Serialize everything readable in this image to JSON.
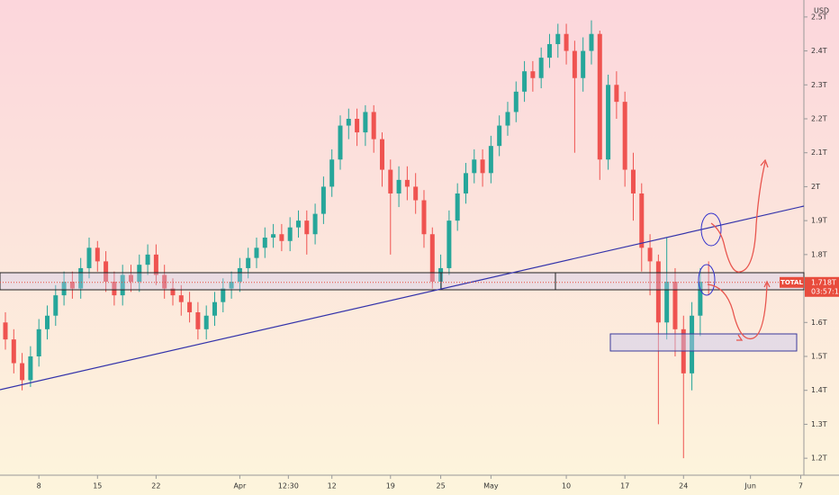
{
  "chart_data": {
    "type": "candlestick",
    "currency": "USD",
    "symbol": "TOTAL",
    "last_price": {
      "value": 1.718,
      "label": "1.718T"
    },
    "countdown": "03:57:15",
    "up_color": "#26a69a",
    "down_color": "#ef5350",
    "candles": {
      "open": [
        1.6,
        1.55,
        1.48,
        1.43,
        1.5,
        1.58,
        1.62,
        1.68,
        1.72,
        1.7,
        1.76,
        1.82,
        1.78,
        1.72,
        1.68,
        1.74,
        1.72,
        1.77,
        1.8,
        1.74,
        1.7,
        1.68,
        1.66,
        1.63,
        1.58,
        1.62,
        1.66,
        1.7,
        1.72,
        1.76,
        1.79,
        1.82,
        1.85,
        1.86,
        1.84,
        1.88,
        1.9,
        1.86,
        1.92,
        2.0,
        2.08,
        2.18,
        2.2,
        2.16,
        2.22,
        2.14,
        2.05,
        1.98,
        2.02,
        2.0,
        1.96,
        1.86,
        1.72,
        1.76,
        1.9,
        1.98,
        2.04,
        2.08,
        2.04,
        2.12,
        2.18,
        2.22,
        2.28,
        2.34,
        2.32,
        2.38,
        2.42,
        2.45,
        2.4,
        2.32,
        2.4,
        2.45,
        2.08,
        2.3,
        2.25,
        2.05,
        1.98,
        1.82,
        1.78,
        1.6,
        1.72,
        1.58,
        1.45,
        1.62,
        1.72
      ],
      "high": [
        1.63,
        1.58,
        1.51,
        1.53,
        1.61,
        1.65,
        1.71,
        1.75,
        1.75,
        1.79,
        1.85,
        1.84,
        1.81,
        1.75,
        1.77,
        1.77,
        1.8,
        1.83,
        1.83,
        1.77,
        1.73,
        1.71,
        1.69,
        1.66,
        1.65,
        1.69,
        1.73,
        1.75,
        1.79,
        1.82,
        1.85,
        1.88,
        1.89,
        1.89,
        1.91,
        1.93,
        1.93,
        1.95,
        2.03,
        2.11,
        2.21,
        2.23,
        2.23,
        2.24,
        2.24,
        2.16,
        2.08,
        2.06,
        2.06,
        2.04,
        1.99,
        1.88,
        1.8,
        1.93,
        2.01,
        2.07,
        2.11,
        2.11,
        2.15,
        2.21,
        2.25,
        2.31,
        2.37,
        2.37,
        2.41,
        2.45,
        2.48,
        2.48,
        2.43,
        2.44,
        2.49,
        2.46,
        2.33,
        2.34,
        2.28,
        2.1,
        2.01,
        1.86,
        1.8,
        1.85,
        1.76,
        1.62,
        1.66,
        1.76,
        1.78
      ],
      "low": [
        1.52,
        1.45,
        1.4,
        1.41,
        1.47,
        1.55,
        1.59,
        1.65,
        1.67,
        1.67,
        1.73,
        1.75,
        1.69,
        1.65,
        1.65,
        1.69,
        1.69,
        1.74,
        1.71,
        1.67,
        1.65,
        1.62,
        1.6,
        1.55,
        1.55,
        1.59,
        1.63,
        1.67,
        1.69,
        1.73,
        1.76,
        1.79,
        1.82,
        1.81,
        1.81,
        1.85,
        1.8,
        1.83,
        1.89,
        1.97,
        2.05,
        2.14,
        2.12,
        2.12,
        2.1,
        2.0,
        1.8,
        1.94,
        1.96,
        1.92,
        1.82,
        1.7,
        1.7,
        1.74,
        1.87,
        1.95,
        2.01,
        2.0,
        2.01,
        2.09,
        2.15,
        2.19,
        2.25,
        2.28,
        2.29,
        2.35,
        2.38,
        2.36,
        2.1,
        2.28,
        2.36,
        2.02,
        2.05,
        2.2,
        2.0,
        1.9,
        1.75,
        1.68,
        1.3,
        1.55,
        1.5,
        1.2,
        1.4,
        1.56,
        1.68
      ],
      "close": [
        1.55,
        1.48,
        1.43,
        1.5,
        1.58,
        1.62,
        1.68,
        1.72,
        1.7,
        1.76,
        1.82,
        1.78,
        1.72,
        1.68,
        1.74,
        1.72,
        1.77,
        1.8,
        1.74,
        1.7,
        1.68,
        1.66,
        1.63,
        1.58,
        1.62,
        1.66,
        1.7,
        1.72,
        1.76,
        1.79,
        1.82,
        1.85,
        1.86,
        1.84,
        1.88,
        1.9,
        1.86,
        1.92,
        2.0,
        2.08,
        2.18,
        2.2,
        2.16,
        2.22,
        2.14,
        2.05,
        1.98,
        2.02,
        2.0,
        1.96,
        1.86,
        1.72,
        1.76,
        1.9,
        1.98,
        2.04,
        2.08,
        2.04,
        2.12,
        2.18,
        2.22,
        2.28,
        2.34,
        2.32,
        2.38,
        2.42,
        2.45,
        2.4,
        2.32,
        2.4,
        2.45,
        2.08,
        2.3,
        2.25,
        2.05,
        1.98,
        1.82,
        1.78,
        1.6,
        1.72,
        1.58,
        1.45,
        1.62,
        1.72,
        1.718
      ]
    },
    "xlim": [
      -0.645,
      95.38
    ],
    "xticks": [
      {
        "value": 4,
        "label": "8"
      },
      {
        "value": 11,
        "label": "15"
      },
      {
        "value": 18,
        "label": "22"
      },
      {
        "value": 28,
        "label": "Apr"
      },
      {
        "value": 33.8,
        "label": "12:30"
      },
      {
        "value": 39,
        "label": "12"
      },
      {
        "value": 46,
        "label": "19"
      },
      {
        "value": 52,
        "label": "25"
      },
      {
        "value": 58,
        "label": "May"
      },
      {
        "value": 67,
        "label": "10"
      },
      {
        "value": 74,
        "label": "17"
      },
      {
        "value": 81,
        "label": "24"
      },
      {
        "value": 89,
        "label": "Jun"
      },
      {
        "value": 95,
        "label": "7"
      }
    ],
    "ylim": [
      1.15,
      2.55
    ],
    "yticks": [
      {
        "value": 2.5,
        "label": "2.5T"
      },
      {
        "value": 2.4,
        "label": "2.4T"
      },
      {
        "value": 2.3,
        "label": "2.3T"
      },
      {
        "value": 2.2,
        "label": "2.2T"
      },
      {
        "value": 2.1,
        "label": "2.1T"
      },
      {
        "value": 2.0,
        "label": "2T"
      },
      {
        "value": 1.9,
        "label": "1.9T"
      },
      {
        "value": 1.8,
        "label": "1.8T"
      },
      {
        "value": 1.7,
        "label": "1.7T"
      },
      {
        "value": 1.6,
        "label": "1.6T"
      },
      {
        "value": 1.5,
        "label": "1.5T"
      },
      {
        "value": 1.4,
        "label": "1.4T"
      },
      {
        "value": 1.3,
        "label": "1.3T"
      },
      {
        "value": 1.2,
        "label": "1.2T"
      }
    ]
  }
}
